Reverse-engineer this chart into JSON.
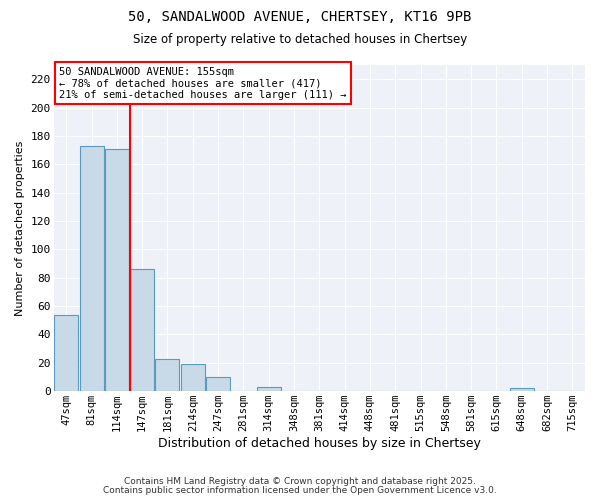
{
  "title1": "50, SANDALWOOD AVENUE, CHERTSEY, KT16 9PB",
  "title2": "Size of property relative to detached houses in Chertsey",
  "xlabel": "Distribution of detached houses by size in Chertsey",
  "ylabel": "Number of detached properties",
  "categories": [
    "47sqm",
    "81sqm",
    "114sqm",
    "147sqm",
    "181sqm",
    "214sqm",
    "247sqm",
    "281sqm",
    "314sqm",
    "348sqm",
    "381sqm",
    "414sqm",
    "448sqm",
    "481sqm",
    "515sqm",
    "548sqm",
    "581sqm",
    "615sqm",
    "648sqm",
    "682sqm",
    "715sqm"
  ],
  "values": [
    54,
    173,
    171,
    86,
    23,
    19,
    10,
    0,
    3,
    0,
    0,
    0,
    0,
    0,
    0,
    0,
    0,
    0,
    2,
    0,
    0
  ],
  "bar_color": "#c8d9e8",
  "bar_edge_color": "#5a9abf",
  "vline_color": "red",
  "vline_pos": 2.5,
  "ylim": [
    0,
    230
  ],
  "yticks": [
    0,
    20,
    40,
    60,
    80,
    100,
    120,
    140,
    160,
    180,
    200,
    220
  ],
  "bg_color": "#eef2f8",
  "annotation_text": "50 SANDALWOOD AVENUE: 155sqm\n← 78% of detached houses are smaller (417)\n21% of semi-detached houses are larger (111) →",
  "footer1": "Contains HM Land Registry data © Crown copyright and database right 2025.",
  "footer2": "Contains public sector information licensed under the Open Government Licence v3.0."
}
